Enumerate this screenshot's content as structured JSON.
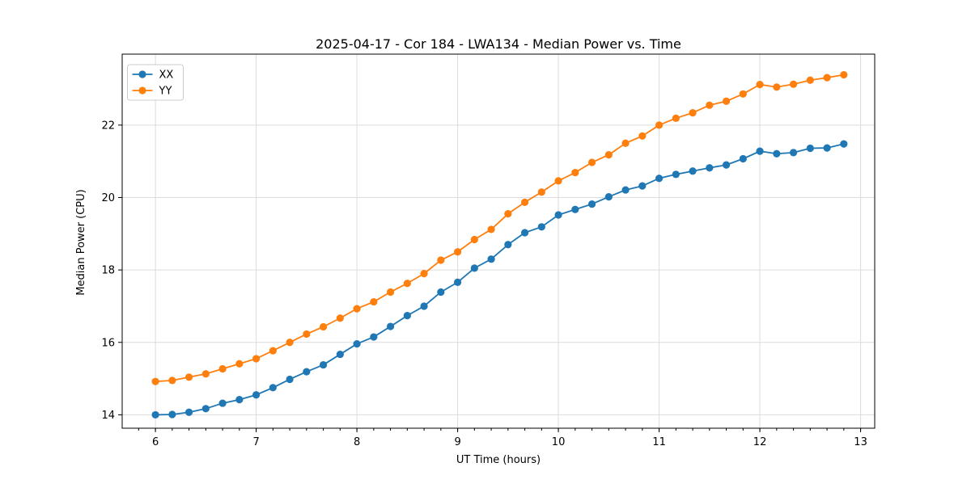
{
  "chart_data": {
    "type": "line",
    "title": "2025-04-17 - Cor 184 - LWA134 - Median Power vs. Time",
    "xlabel": "UT Time (hours)",
    "ylabel": "Median Power (CPU)",
    "xlim": [
      5.67,
      13.14
    ],
    "ylim": [
      13.63,
      23.96
    ],
    "xticks": [
      6,
      7,
      8,
      9,
      10,
      11,
      12,
      13
    ],
    "yticks": [
      14,
      16,
      18,
      20,
      22
    ],
    "x_minor_tick_step": 0.166667,
    "grid": true,
    "legend_position": "upper-left",
    "background_color": "#ffffff",
    "grid_color": "#dcdcdc",
    "spine_color": "#000000",
    "x": [
      6.0,
      6.1667,
      6.3333,
      6.5,
      6.6667,
      6.8333,
      7.0,
      7.1667,
      7.3333,
      7.5,
      7.6667,
      7.8333,
      8.0,
      8.1667,
      8.3333,
      8.5,
      8.6667,
      8.8333,
      9.0,
      9.1667,
      9.3333,
      9.5,
      9.6667,
      9.8333,
      10.0,
      10.1667,
      10.3333,
      10.5,
      10.6667,
      10.8333,
      11.0,
      11.1667,
      11.3333,
      11.5,
      11.6667,
      11.8333,
      12.0,
      12.1667,
      12.3333,
      12.5,
      12.6667,
      12.8333
    ],
    "series": [
      {
        "name": "XX",
        "color": "#1f77b4",
        "values": [
          14.0,
          14.01,
          14.07,
          14.17,
          14.32,
          14.42,
          14.55,
          14.75,
          14.98,
          15.19,
          15.38,
          15.67,
          15.96,
          16.15,
          16.44,
          16.74,
          17.0,
          17.39,
          17.66,
          18.05,
          18.3,
          18.7,
          19.03,
          19.19,
          19.52,
          19.67,
          19.82,
          20.02,
          20.21,
          20.32,
          20.53,
          20.64,
          20.73,
          20.82,
          20.9,
          21.07,
          21.28,
          21.21,
          21.24,
          21.36,
          21.37,
          21.48
        ]
      },
      {
        "name": "YY",
        "color": "#ff7f0e",
        "values": [
          14.92,
          14.95,
          15.04,
          15.13,
          15.27,
          15.41,
          15.55,
          15.77,
          16.0,
          16.23,
          16.43,
          16.67,
          16.93,
          17.12,
          17.39,
          17.63,
          17.9,
          18.27,
          18.5,
          18.84,
          19.12,
          19.55,
          19.87,
          20.15,
          20.46,
          20.69,
          20.97,
          21.18,
          21.5,
          21.7,
          22.0,
          22.19,
          22.34,
          22.55,
          22.66,
          22.86,
          23.12,
          23.05,
          23.13,
          23.24,
          23.31,
          23.39
        ]
      }
    ]
  }
}
